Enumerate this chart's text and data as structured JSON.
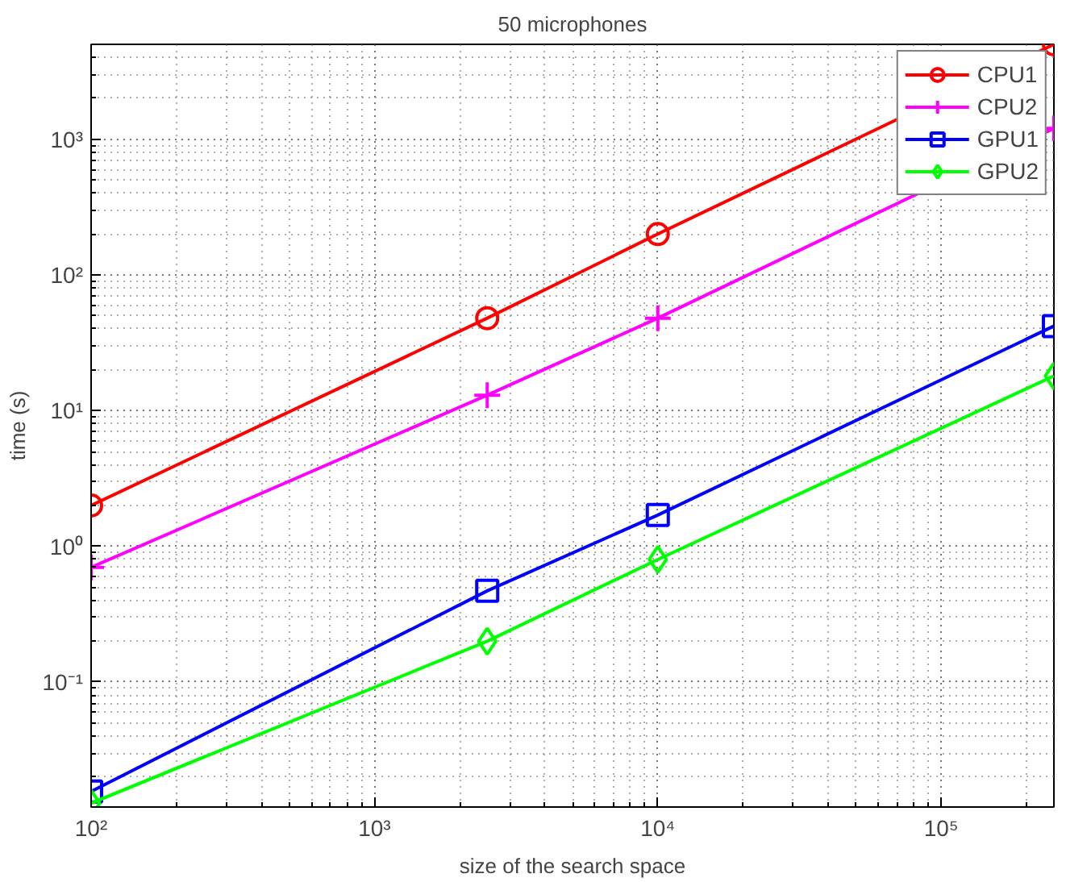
{
  "chart_data": {
    "type": "line",
    "title": "50 microphones",
    "xlabel": "size of the search space",
    "ylabel": "time (s)",
    "x": [
      100,
      2500,
      10000,
      250000
    ],
    "series": [
      {
        "name": "CPU1",
        "color": "#ff0000",
        "marker": "circle",
        "values": [
          2,
          48,
          200,
          5000
        ]
      },
      {
        "name": "CPU2",
        "color": "#ff00ff",
        "marker": "cross",
        "values": [
          0.7,
          13,
          48,
          1200
        ]
      },
      {
        "name": "GPU1",
        "color": "#0000ff",
        "marker": "square",
        "values": [
          0.0156,
          0.47,
          1.7,
          42
        ]
      },
      {
        "name": "GPU2",
        "color": "#00ff00",
        "marker": "diamond",
        "values": [
          0.0128,
          0.2,
          0.8,
          18
        ]
      }
    ],
    "log": "xy",
    "xlim": [
      100,
      250000
    ],
    "ylim": [
      0.012,
      5000
    ],
    "xticks": [
      {
        "value": 100,
        "label": "10²"
      },
      {
        "value": 1000,
        "label": "10³"
      },
      {
        "value": 10000,
        "label": "10⁴"
      },
      {
        "value": 100000,
        "label": "10⁵"
      }
    ],
    "yticks": [
      {
        "value": 0.1,
        "label": "10⁻¹"
      },
      {
        "value": 1,
        "label": "10⁰"
      },
      {
        "value": 10,
        "label": "10¹"
      },
      {
        "value": 100,
        "label": "10²"
      },
      {
        "value": 1000,
        "label": "10³"
      }
    ],
    "grid": true,
    "legend": "top right",
    "line_style": "solid"
  }
}
